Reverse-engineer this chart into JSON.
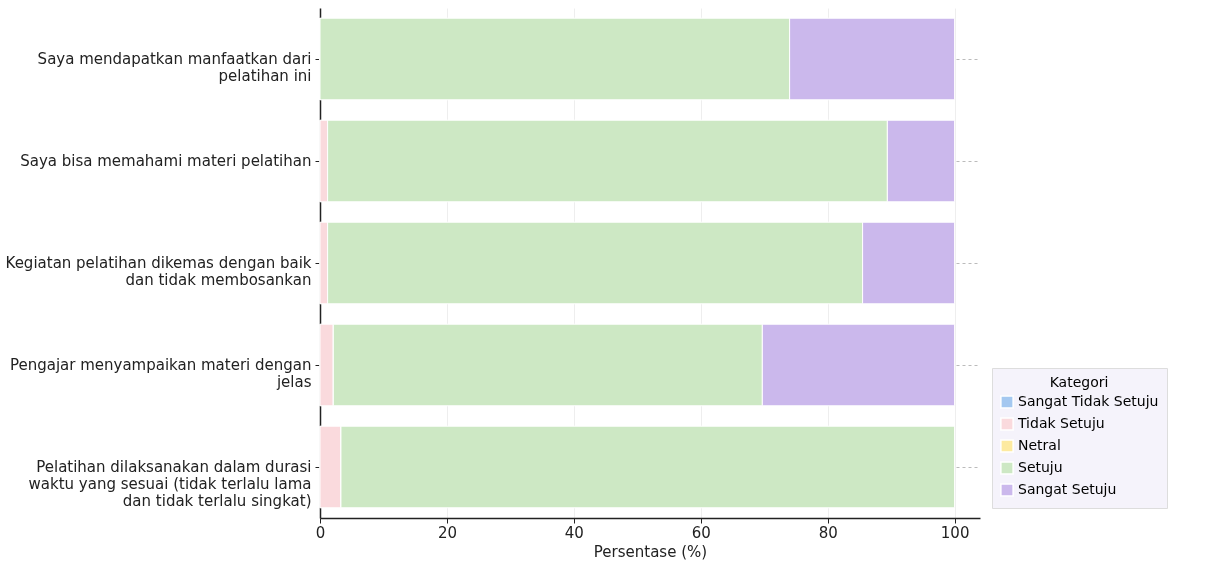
{
  "chart_data": {
    "type": "bar",
    "orientation": "horizontal",
    "stacked": true,
    "xlabel": "Persentase (%)",
    "legend_title": "Kategori",
    "legend": "bottom right",
    "grid": true,
    "categories": [
      "Saya mendapatkan manfaatkan dari pelatihan ini",
      "Saya bisa memahami materi pelatihan",
      "Kegiatan pelatihan dikemas dengan baik dan tidak membosankan",
      "Pengajar menyampaikan materi dengan jelas",
      "Pelatihan dilaksanakan dalam durasi waktu yang sesuai (tidak terlalu lama dan tidak terlalu singkat)"
    ],
    "series": [
      {
        "name": "Sangat Tidak Setuju",
        "color": "#a4c8f0",
        "values": [
          0,
          0,
          0,
          0,
          0
        ]
      },
      {
        "name": "Tidak Setuju",
        "color": "#fadadd",
        "values": [
          0,
          1.2,
          1.2,
          2.1,
          3.3
        ]
      },
      {
        "name": "Netral",
        "color": "#fdeaa0",
        "values": [
          0,
          0,
          0,
          0,
          0
        ]
      },
      {
        "name": "Setuju",
        "color": "#cde8c4",
        "values": [
          74.0,
          88.2,
          84.3,
          67.6,
          96.7
        ]
      },
      {
        "name": "Sangat Setuju",
        "color": "#cbb8ec",
        "values": [
          26.0,
          10.6,
          14.5,
          30.3,
          null
        ]
      }
    ],
    "xlim": [
      0,
      104
    ],
    "xticks": [
      0,
      20,
      40,
      60,
      80,
      100
    ]
  }
}
